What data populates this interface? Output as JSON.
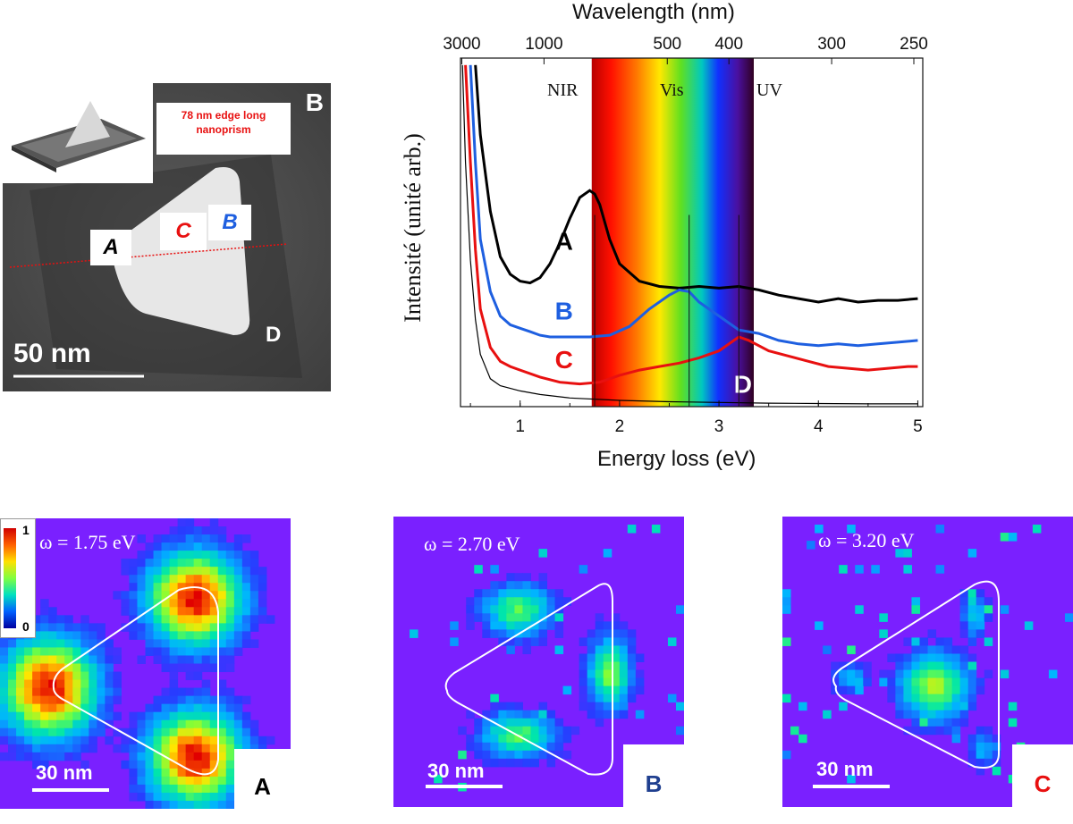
{
  "stem_panel": {
    "panel_letter": "B",
    "inset_caption": "78 nm edge long nanoprism",
    "scale_label": "50 nm",
    "points": [
      {
        "label": "A",
        "color": "#000000"
      },
      {
        "label": "C",
        "color": "#e81010"
      },
      {
        "label": "B",
        "color": "#1e5fe0"
      },
      {
        "label": "D",
        "color": "#ffffff"
      }
    ]
  },
  "spectrum": {
    "top_axis_title": "Wavelength (nm)",
    "top_ticks": [
      "3000",
      "1000",
      "500",
      "400",
      "300",
      "250"
    ],
    "region_labels": [
      "NIR",
      "Vis",
      "UV"
    ],
    "ylabel": "Intensité (unité arb.)",
    "xlabel": "Energy loss (eV)",
    "x_ticks": [
      "1",
      "2",
      "3",
      "4",
      "5"
    ]
  },
  "chart_data": {
    "type": "line",
    "title": "",
    "xlabel": "Energy loss (eV)",
    "ylabel": "Intensité (unité arb.)",
    "x2label": "Wavelength (nm)",
    "xlim": [
      0.4,
      5.05
    ],
    "ylim": [
      0,
      1
    ],
    "series": [
      {
        "name": "A",
        "color": "#000000",
        "x": [
          0.55,
          0.6,
          0.7,
          0.8,
          0.9,
          1.0,
          1.1,
          1.2,
          1.3,
          1.4,
          1.5,
          1.6,
          1.7,
          1.75,
          1.8,
          1.9,
          2.0,
          2.2,
          2.4,
          2.6,
          2.8,
          3.0,
          3.2,
          3.4,
          3.6,
          3.8,
          4.0,
          4.2,
          4.4,
          4.6,
          4.8,
          5.0
        ],
        "y": [
          0.98,
          0.78,
          0.56,
          0.43,
          0.38,
          0.36,
          0.355,
          0.37,
          0.41,
          0.47,
          0.54,
          0.6,
          0.62,
          0.61,
          0.58,
          0.48,
          0.41,
          0.36,
          0.345,
          0.34,
          0.345,
          0.34,
          0.345,
          0.335,
          0.32,
          0.31,
          0.3,
          0.31,
          0.3,
          0.305,
          0.305,
          0.31
        ]
      },
      {
        "name": "B",
        "color": "#1e5fe0",
        "x": [
          0.5,
          0.55,
          0.6,
          0.7,
          0.8,
          0.9,
          1.0,
          1.1,
          1.2,
          1.3,
          1.5,
          1.7,
          1.9,
          2.1,
          2.3,
          2.5,
          2.6,
          2.7,
          2.8,
          3.0,
          3.2,
          3.4,
          3.6,
          3.8,
          4.0,
          4.2,
          4.4,
          4.6,
          4.8,
          5.0
        ],
        "y": [
          0.98,
          0.7,
          0.48,
          0.33,
          0.26,
          0.235,
          0.225,
          0.215,
          0.205,
          0.2,
          0.2,
          0.2,
          0.205,
          0.23,
          0.28,
          0.32,
          0.335,
          0.33,
          0.3,
          0.26,
          0.22,
          0.21,
          0.19,
          0.18,
          0.175,
          0.18,
          0.175,
          0.18,
          0.185,
          0.19
        ]
      },
      {
        "name": "C",
        "color": "#e81010",
        "x": [
          0.45,
          0.5,
          0.55,
          0.6,
          0.7,
          0.8,
          0.9,
          1.0,
          1.2,
          1.4,
          1.6,
          1.8,
          2.0,
          2.2,
          2.4,
          2.6,
          2.8,
          3.0,
          3.1,
          3.2,
          3.3,
          3.5,
          3.7,
          3.9,
          4.1,
          4.3,
          4.5,
          4.7,
          4.9,
          5.0
        ],
        "y": [
          0.98,
          0.7,
          0.45,
          0.28,
          0.17,
          0.13,
          0.115,
          0.105,
          0.085,
          0.07,
          0.065,
          0.07,
          0.09,
          0.105,
          0.115,
          0.125,
          0.14,
          0.16,
          0.18,
          0.2,
          0.19,
          0.16,
          0.145,
          0.13,
          0.115,
          0.11,
          0.105,
          0.11,
          0.115,
          0.115
        ]
      },
      {
        "name": "D",
        "color": "#000000",
        "x": [
          0.42,
          0.45,
          0.5,
          0.55,
          0.6,
          0.7,
          0.8,
          1.0,
          1.2,
          1.5,
          2.0,
          2.5,
          3.0,
          3.5,
          4.0,
          4.5,
          5.0
        ],
        "y": [
          0.98,
          0.7,
          0.42,
          0.25,
          0.15,
          0.08,
          0.06,
          0.045,
          0.035,
          0.025,
          0.018,
          0.014,
          0.012,
          0.01,
          0.009,
          0.008,
          0.008
        ]
      }
    ],
    "series_labels": [
      {
        "name": "A",
        "x": 1.35,
        "y": 0.45,
        "color": "#000000"
      },
      {
        "name": "B",
        "x": 1.35,
        "y": 0.25,
        "color": "#1e5fe0"
      },
      {
        "name": "C",
        "x": 1.35,
        "y": 0.11,
        "color": "#e81010"
      },
      {
        "name": "D",
        "x": 3.15,
        "y": 0.04,
        "color": "#ffffff"
      }
    ],
    "markers_ev": [
      1.75,
      2.7,
      3.2
    ],
    "visible_band_ev": [
      1.72,
      3.35
    ]
  },
  "maps": [
    {
      "letter": "A",
      "omega": "ω = 1.75 eV",
      "scale": "30 nm",
      "letter_color": "#000000"
    },
    {
      "letter": "B",
      "omega": "ω = 2.70 eV",
      "scale": "30 nm",
      "letter_color": "#1f3f8f"
    },
    {
      "letter": "C",
      "omega": "ω = 3.20 eV",
      "scale": "30 nm",
      "letter_color": "#e81010"
    }
  ],
  "colorbar": {
    "max": "1",
    "min": "0"
  },
  "colors": {
    "map_background": "#7a20ff",
    "curve_a": "#000000",
    "curve_b": "#1e5fe0",
    "curve_c": "#e81010"
  }
}
